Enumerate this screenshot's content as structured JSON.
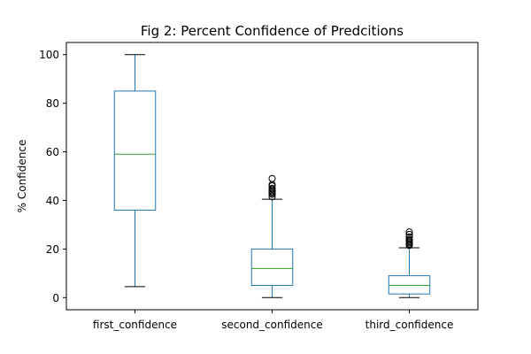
{
  "chart_data": {
    "type": "box",
    "title": "Fig 2: Percent Confidence of Predcitions",
    "xlabel": "",
    "ylabel": "% Confidence",
    "ylim": [
      -5,
      105
    ],
    "yticks": [
      0,
      20,
      40,
      60,
      80,
      100
    ],
    "grid": false,
    "categories": [
      "first_confidence",
      "second_confidence",
      "third_confidence"
    ],
    "boxes": [
      {
        "name": "first_confidence",
        "whisker_low": 4.5,
        "q1": 36,
        "median": 59,
        "q3": 85,
        "whisker_high": 100,
        "outliers": []
      },
      {
        "name": "second_confidence",
        "whisker_low": 0,
        "q1": 5,
        "median": 12,
        "q3": 20,
        "whisker_high": 40.5,
        "outliers": [
          41.5,
          42.5,
          43,
          43.5,
          44,
          44.5,
          45,
          46,
          46.5,
          49
        ]
      },
      {
        "name": "third_confidence",
        "whisker_low": 0,
        "q1": 1.5,
        "median": 5,
        "q3": 9,
        "whisker_high": 20.5,
        "outliers": [
          21.5,
          22,
          22.5,
          23,
          23.5,
          24,
          25,
          26,
          27
        ]
      }
    ],
    "colors": {
      "box": "#1f77b4",
      "median": "#2ca02c",
      "cap": "#000000",
      "outlier": "#000000",
      "axis": "#000000"
    }
  }
}
